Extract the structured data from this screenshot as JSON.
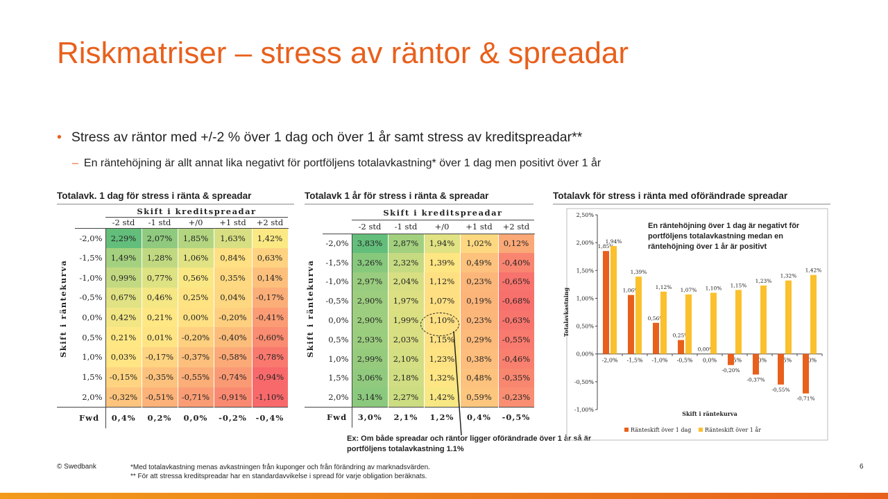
{
  "title": "Riskmatriser – stress av räntor & spreadar",
  "bullets": {
    "main": "Stress av räntor med +/-2 % över 1 dag och över 1 år samt stress av kreditspreadar**",
    "sub": "En räntehöjning är allt annat lika negativt för portföljens totalavkastning* över 1 dag men positivt över 1 år"
  },
  "matrix1": {
    "title": "Totalavk. 1 dag för stress i ränta & spreadar",
    "spread_label": "Skift i kreditspreadar",
    "rate_label": "Skift i räntekurva",
    "col_headers": [
      "-2 std",
      "-1 std",
      "+/0",
      "+1 std",
      "+2 std"
    ],
    "row_headers": [
      "-2,0%",
      "-1,5%",
      "-1,0%",
      "-0,5%",
      "0,0%",
      "0,5%",
      "1,0%",
      "1,5%",
      "2,0%"
    ],
    "cells": [
      [
        "2,29%",
        "2,07%",
        "1,85%",
        "1,63%",
        "1,42%"
      ],
      [
        "1,49%",
        "1,28%",
        "1,06%",
        "0,84%",
        "0,63%"
      ],
      [
        "0,99%",
        "0,77%",
        "0,56%",
        "0,35%",
        "0,14%"
      ],
      [
        "0,67%",
        "0,46%",
        "0,25%",
        "0,04%",
        "-0,17%"
      ],
      [
        "0,42%",
        "0,21%",
        "0,00%",
        "-0,20%",
        "-0,41%"
      ],
      [
        "0,21%",
        "0,01%",
        "-0,20%",
        "-0,40%",
        "-0,60%"
      ],
      [
        "0,03%",
        "-0,17%",
        "-0,37%",
        "-0,58%",
        "-0,78%"
      ],
      [
        "-0,15%",
        "-0,35%",
        "-0,55%",
        "-0,74%",
        "-0,94%"
      ],
      [
        "-0,32%",
        "-0,51%",
        "-0,71%",
        "-0,91%",
        "-1,10%"
      ]
    ],
    "colors": [
      [
        "#63be7b",
        "#8fca7e",
        "#b3d580",
        "#d7df82",
        "#fbe983"
      ],
      [
        "#a4d17f",
        "#c0d981",
        "#e0e283",
        "#ffe082",
        "#fed280"
      ],
      [
        "#c3d981",
        "#dde282",
        "#f9e883",
        "#ffd981",
        "#fdc07c"
      ],
      [
        "#e0e283",
        "#f4e784",
        "#ffe383",
        "#fed781",
        "#fcae78"
      ],
      [
        "#f2e684",
        "#ffe784",
        "#ffe183",
        "#fdcf7f",
        "#fb9c74"
      ],
      [
        "#ffe884",
        "#ffe483",
        "#fed07f",
        "#fcbd7b",
        "#fa8c71"
      ],
      [
        "#ffe583",
        "#fed381",
        "#fcc07c",
        "#fbaa77",
        "#f9796e"
      ],
      [
        "#fed481",
        "#fcc27d",
        "#fbae78",
        "#fa9a74",
        "#f8696b"
      ],
      [
        "#fdc47d",
        "#fcb279",
        "#fa9d75",
        "#f98a71",
        "#f8696b"
      ]
    ],
    "fwd_label": "Fwd",
    "fwd_values": [
      "0,4%",
      "0,2%",
      "0,0%",
      "-0,2%",
      "-0,4%"
    ]
  },
  "matrix2": {
    "title": "Totalavk 1 år för stress i ränta & spreadar",
    "spread_label": "Skift i kreditspreadar",
    "rate_label": "Skift i räntekurva",
    "col_headers": [
      "-2 std",
      "-1 std",
      "+/0",
      "+1 std",
      "+2 std"
    ],
    "row_headers": [
      "-2,0%",
      "-1,5%",
      "-1,0%",
      "-0,5%",
      "0,0%",
      "0,5%",
      "1,0%",
      "1,5%",
      "2,0%"
    ],
    "cells": [
      [
        "3,83%",
        "2,87%",
        "1,94%",
        "1,02%",
        "0,12%"
      ],
      [
        "3,26%",
        "2,32%",
        "1,39%",
        "0,49%",
        "-0,40%"
      ],
      [
        "2,97%",
        "2,04%",
        "1,12%",
        "0,23%",
        "-0,65%"
      ],
      [
        "2,90%",
        "1,97%",
        "1,07%",
        "0,19%",
        "-0,68%"
      ],
      [
        "2,90%",
        "1,99%",
        "1,10%",
        "0,23%",
        "-0,63%"
      ],
      [
        "2,93%",
        "2,03%",
        "1,15%",
        "0,29%",
        "-0,55%"
      ],
      [
        "2,99%",
        "2,10%",
        "1,23%",
        "0,38%",
        "-0,46%"
      ],
      [
        "3,06%",
        "2,18%",
        "1,32%",
        "0,48%",
        "-0,35%"
      ],
      [
        "3,14%",
        "2,27%",
        "1,42%",
        "0,59%",
        "-0,23%"
      ]
    ],
    "colors": [
      [
        "#63be7b",
        "#a2d07f",
        "#e0e283",
        "#fed881",
        "#fba877"
      ],
      [
        "#87c87d",
        "#c6da81",
        "#fee683",
        "#fdc27d",
        "#f98570"
      ],
      [
        "#99cc7e",
        "#d8df82",
        "#fee082",
        "#fcb67a",
        "#f8736d"
      ],
      [
        "#9dce7f",
        "#dce082",
        "#fedf82",
        "#fcb479",
        "#f8706c"
      ],
      [
        "#9dce7f",
        "#dae082",
        "#fee083",
        "#fcb67a",
        "#f8756d"
      ],
      [
        "#9bcd7f",
        "#d8df82",
        "#fee183",
        "#fcba7b",
        "#f97a6e"
      ],
      [
        "#96cb7e",
        "#d4de82",
        "#fee383",
        "#fdbd7c",
        "#f9806f"
      ],
      [
        "#91ca7e",
        "#d0dd82",
        "#fde683",
        "#fdc27d",
        "#f98770"
      ],
      [
        "#8bc97e",
        "#cbdc81",
        "#f7e884",
        "#fdc67e",
        "#f98e72"
      ]
    ],
    "fwd_label": "Fwd",
    "fwd_values": [
      "3,0%",
      "2,1%",
      "1,2%",
      "0,4%",
      "-0,5%"
    ]
  },
  "annotation": "Ex: Om både spreadar och räntor ligger oförändrade över 1 år så är portföljens totalavkastning 1.1%",
  "chart_data": {
    "type": "bar",
    "title": "Totalavk för stress i ränta med oförändrade spreadar",
    "note": "En räntehöjning över 1 dag är negativt för portföljens totalavkastning medan en räntehöjning över 1 år är positivt",
    "categories": [
      "-2,0%",
      "-1,5%",
      "-1,0%",
      "-0,5%",
      "0,0%",
      "0,5%",
      "1,0%",
      "1,5%",
      "2,0%"
    ],
    "series": [
      {
        "name": "Ränteskift över 1 dag",
        "values": [
          1.85,
          1.06,
          0.56,
          0.25,
          0.0,
          -0.2,
          -0.37,
          -0.55,
          -0.71
        ],
        "labels": [
          "1,85%",
          "1,06%",
          "0,56%",
          "0,25%",
          "0,00%",
          "-0,20%",
          "-0,37%",
          "-0,55%",
          "-0,71%"
        ],
        "color": "#e8601c"
      },
      {
        "name": "Ränteskift över 1 år",
        "values": [
          1.94,
          1.39,
          1.12,
          1.07,
          1.1,
          1.15,
          1.23,
          1.32,
          1.42
        ],
        "labels": [
          "1,94%",
          "1,39%",
          "1,12%",
          "1,07%",
          "1,10%",
          "1,15%",
          "1,23%",
          "1,32%",
          "1,42%"
        ],
        "color": "#fbc02d"
      }
    ],
    "xlabel": "Skift i räntekurva",
    "ylabel": "Totalavkastning",
    "ylim": [
      -1.0,
      2.5
    ],
    "yticks": [
      -1.0,
      -0.5,
      0.0,
      0.5,
      1.0,
      1.5,
      2.0,
      2.5
    ],
    "ytick_labels": [
      "-1,00%",
      "-0,50%",
      "0,00%",
      "0,50%",
      "1,00%",
      "1,50%",
      "2,00%",
      "2,50%"
    ],
    "legend_position": "bottom",
    "grid": false
  },
  "footer": {
    "copyright": "© Swedbank",
    "footnote1": "*Med totalavkastning menas avkastningen från kuponger och från förändring av marknadsvärden.",
    "footnote2": "** För att stressa kreditspreadar har en standardavvikelse i spread för varje obligation beräknats.",
    "page": "6"
  }
}
